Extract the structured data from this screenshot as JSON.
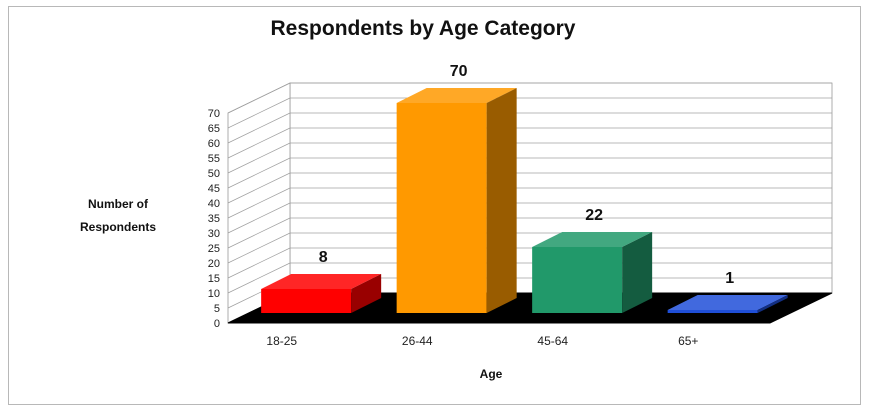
{
  "chart_data": {
    "type": "bar",
    "title": "Respondents by Age Category",
    "xlabel": "Age",
    "ylabel_lines": [
      "Number of",
      "Respondents"
    ],
    "categories": [
      "18-25",
      "26-44",
      "45-64",
      "65+"
    ],
    "values": [
      8,
      70,
      22,
      1
    ],
    "data_labels": [
      "8",
      "70",
      "22",
      "1"
    ],
    "colors": [
      "#ff0000",
      "#ff9900",
      "#21996a",
      "#1f4fd8"
    ],
    "ylim": [
      0,
      70
    ],
    "yticks": [
      "0",
      "5",
      "10",
      "15",
      "20",
      "25",
      "30",
      "35",
      "40",
      "45",
      "50",
      "55",
      "60",
      "65",
      "70"
    ],
    "grid": true,
    "style": "3d",
    "floor_color": "#000000"
  }
}
